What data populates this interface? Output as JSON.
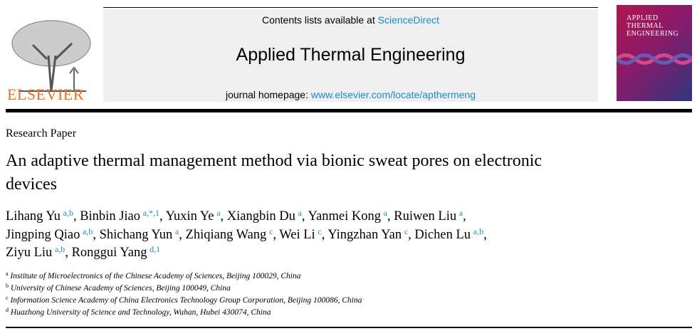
{
  "header": {
    "publisher": "ELSEVIER",
    "contents_prefix": "Contents lists available at ",
    "contents_link": "ScienceDirect",
    "journal_title": "Applied Thermal Engineering",
    "homepage_prefix": "journal homepage: ",
    "homepage_link": "www.elsevier.com/locate/apthermeng",
    "cover_title": "Applied Thermal Engineering",
    "link_color": "#1a8ac9",
    "publisher_color": "#e9711c"
  },
  "article": {
    "type": "Research Paper",
    "title": "An adaptive thermal management method via bionic sweat pores on electronic devices",
    "authors": [
      {
        "name": "Lihang Yu",
        "sup": "a,b"
      },
      {
        "name": "Binbin Jiao",
        "sup": "a,*,1"
      },
      {
        "name": "Yuxin Ye",
        "sup": "a"
      },
      {
        "name": "Xiangbin Du",
        "sup": "a"
      },
      {
        "name": "Yanmei Kong",
        "sup": "a"
      },
      {
        "name": "Ruiwen Liu",
        "sup": "a"
      },
      {
        "name": "Jingping Qiao",
        "sup": "a,b"
      },
      {
        "name": "Shichang Yun",
        "sup": "a"
      },
      {
        "name": "Zhiqiang Wang",
        "sup": "c"
      },
      {
        "name": "Wei Li",
        "sup": "c"
      },
      {
        "name": "Yingzhan Yan",
        "sup": "c"
      },
      {
        "name": "Dichen Lu",
        "sup": "a,b"
      },
      {
        "name": "Ziyu Liu",
        "sup": "a,b"
      },
      {
        "name": "Ronggui Yang",
        "sup": "d,1"
      }
    ],
    "affiliations": [
      {
        "key": "a",
        "text": "Institute of Microelectronics of the Chinese Academy of Sciences, Beijing 100029, China"
      },
      {
        "key": "b",
        "text": "University of Chinese Academy of Sciences, Beijing 100049, China"
      },
      {
        "key": "c",
        "text": "Information Science Academy of China Electronics Technology Group Corporation, Beijing 100086, China"
      },
      {
        "key": "d",
        "text": "Huazhong University of Science and Technology, Wuhan, Hubei 430074, China"
      }
    ]
  }
}
